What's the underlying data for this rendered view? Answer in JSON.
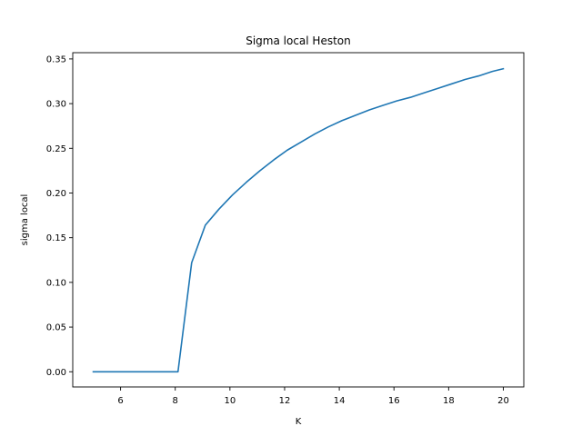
{
  "chart_data": {
    "type": "line",
    "title": "Sigma local Heston",
    "xlabel": "K",
    "ylabel": "sigma local",
    "xlim": [
      4.25,
      20.75
    ],
    "ylim": [
      -0.017,
      0.357
    ],
    "xticks": [
      6,
      8,
      10,
      12,
      14,
      16,
      18,
      20
    ],
    "xtick_labels": [
      "6",
      "8",
      "10",
      "12",
      "14",
      "16",
      "18",
      "20"
    ],
    "yticks": [
      0.0,
      0.05,
      0.1,
      0.15,
      0.2,
      0.25,
      0.3,
      0.35
    ],
    "ytick_labels": [
      "0.00",
      "0.05",
      "0.10",
      "0.15",
      "0.20",
      "0.25",
      "0.30",
      "0.35"
    ],
    "grid": false,
    "series": [
      {
        "color": "#1f77b4",
        "x": [
          5.0,
          5.5,
          6.0,
          6.5,
          7.0,
          7.5,
          8.0,
          8.1,
          8.6,
          9.1,
          9.6,
          10.1,
          10.6,
          11.1,
          11.6,
          12.1,
          12.6,
          13.1,
          13.6,
          14.1,
          14.6,
          15.1,
          15.6,
          16.1,
          16.6,
          17.1,
          17.6,
          18.1,
          18.6,
          19.1,
          19.6,
          20.0
        ],
        "y": [
          0.0,
          0.0,
          0.0,
          0.0,
          0.0,
          0.0,
          0.0,
          0.0,
          0.122,
          0.164,
          0.182,
          0.198,
          0.212,
          0.225,
          0.237,
          0.248,
          0.257,
          0.266,
          0.274,
          0.281,
          0.287,
          0.293,
          0.298,
          0.303,
          0.307,
          0.312,
          0.317,
          0.322,
          0.327,
          0.331,
          0.336,
          0.339
        ]
      }
    ]
  }
}
